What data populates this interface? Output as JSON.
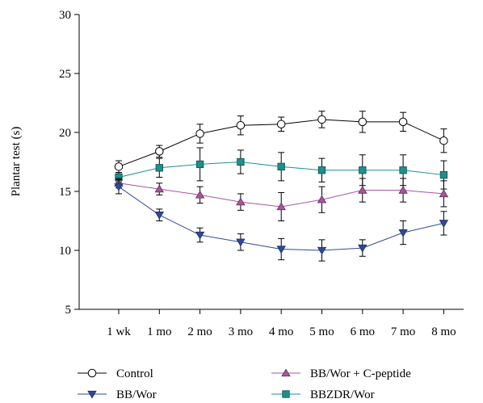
{
  "chart_data": {
    "type": "line",
    "title": "",
    "xlabel": "",
    "ylabel": "Plantar test (s)",
    "ylim": [
      5,
      30
    ],
    "yticks": [
      5,
      10,
      15,
      20,
      25,
      30
    ],
    "categories": [
      "1 wk",
      "1 mo",
      "2 mo",
      "3 mo",
      "4 mo",
      "5 mo",
      "6 mo",
      "7 mo",
      "8 mo"
    ],
    "legend_position": "bottom",
    "grid": false,
    "series": [
      {
        "name": "Control",
        "color": "#000000",
        "marker": "circle-open",
        "values": [
          17.1,
          18.4,
          19.9,
          20.6,
          20.7,
          21.1,
          20.9,
          20.9,
          19.3
        ],
        "errors": [
          0.5,
          0.5,
          0.8,
          0.8,
          0.6,
          0.7,
          0.9,
          0.8,
          1.0
        ]
      },
      {
        "name": "BB/Wor",
        "color": "#2d4a9b",
        "marker": "triangle-down",
        "values": [
          15.4,
          13.0,
          11.3,
          10.7,
          10.1,
          10.0,
          10.2,
          11.5,
          12.3
        ],
        "errors": [
          0.6,
          0.5,
          0.6,
          0.7,
          0.9,
          0.9,
          0.7,
          1.0,
          1.0
        ]
      },
      {
        "name": "BB/Wor + C-peptide",
        "color": "#a9559c",
        "marker": "triangle-up",
        "values": [
          15.7,
          15.2,
          14.7,
          14.1,
          13.7,
          14.3,
          15.1,
          15.1,
          14.8
        ],
        "errors": [
          0.4,
          0.5,
          0.7,
          0.7,
          1.2,
          1.1,
          1.0,
          1.0,
          1.1
        ]
      },
      {
        "name": "BBZDR/Wor",
        "color": "#1f8f8a",
        "marker": "square",
        "values": [
          16.2,
          17.0,
          17.3,
          17.5,
          17.1,
          16.8,
          16.8,
          16.8,
          16.4
        ],
        "errors": [
          0.4,
          0.8,
          1.4,
          1.0,
          1.2,
          1.0,
          1.3,
          1.3,
          1.2
        ]
      }
    ]
  }
}
